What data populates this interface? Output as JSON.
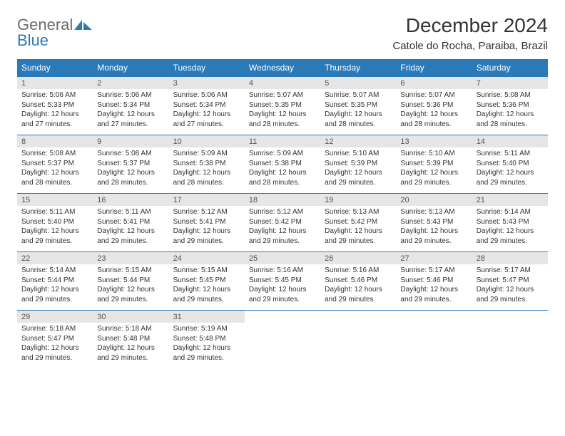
{
  "brand": {
    "word1": "General",
    "word2": "Blue"
  },
  "title": "December 2024",
  "location": "Catole do Rocha, Paraiba, Brazil",
  "colors": {
    "header_bg": "#2a7ab9",
    "header_text": "#ffffff",
    "daynum_bg": "#e6e6e6",
    "rule": "#2a7ab9",
    "text": "#333333",
    "logo_gray": "#6b6b6b",
    "logo_blue": "#2a7ab9",
    "page_bg": "#ffffff"
  },
  "days_of_week": [
    "Sunday",
    "Monday",
    "Tuesday",
    "Wednesday",
    "Thursday",
    "Friday",
    "Saturday"
  ],
  "weeks": [
    [
      {
        "n": "1",
        "sr": "5:06 AM",
        "ss": "5:33 PM",
        "dl": "12 hours and 27 minutes."
      },
      {
        "n": "2",
        "sr": "5:06 AM",
        "ss": "5:34 PM",
        "dl": "12 hours and 27 minutes."
      },
      {
        "n": "3",
        "sr": "5:06 AM",
        "ss": "5:34 PM",
        "dl": "12 hours and 27 minutes."
      },
      {
        "n": "4",
        "sr": "5:07 AM",
        "ss": "5:35 PM",
        "dl": "12 hours and 28 minutes."
      },
      {
        "n": "5",
        "sr": "5:07 AM",
        "ss": "5:35 PM",
        "dl": "12 hours and 28 minutes."
      },
      {
        "n": "6",
        "sr": "5:07 AM",
        "ss": "5:36 PM",
        "dl": "12 hours and 28 minutes."
      },
      {
        "n": "7",
        "sr": "5:08 AM",
        "ss": "5:36 PM",
        "dl": "12 hours and 28 minutes."
      }
    ],
    [
      {
        "n": "8",
        "sr": "5:08 AM",
        "ss": "5:37 PM",
        "dl": "12 hours and 28 minutes."
      },
      {
        "n": "9",
        "sr": "5:08 AM",
        "ss": "5:37 PM",
        "dl": "12 hours and 28 minutes."
      },
      {
        "n": "10",
        "sr": "5:09 AM",
        "ss": "5:38 PM",
        "dl": "12 hours and 28 minutes."
      },
      {
        "n": "11",
        "sr": "5:09 AM",
        "ss": "5:38 PM",
        "dl": "12 hours and 28 minutes."
      },
      {
        "n": "12",
        "sr": "5:10 AM",
        "ss": "5:39 PM",
        "dl": "12 hours and 29 minutes."
      },
      {
        "n": "13",
        "sr": "5:10 AM",
        "ss": "5:39 PM",
        "dl": "12 hours and 29 minutes."
      },
      {
        "n": "14",
        "sr": "5:11 AM",
        "ss": "5:40 PM",
        "dl": "12 hours and 29 minutes."
      }
    ],
    [
      {
        "n": "15",
        "sr": "5:11 AM",
        "ss": "5:40 PM",
        "dl": "12 hours and 29 minutes."
      },
      {
        "n": "16",
        "sr": "5:11 AM",
        "ss": "5:41 PM",
        "dl": "12 hours and 29 minutes."
      },
      {
        "n": "17",
        "sr": "5:12 AM",
        "ss": "5:41 PM",
        "dl": "12 hours and 29 minutes."
      },
      {
        "n": "18",
        "sr": "5:12 AM",
        "ss": "5:42 PM",
        "dl": "12 hours and 29 minutes."
      },
      {
        "n": "19",
        "sr": "5:13 AM",
        "ss": "5:42 PM",
        "dl": "12 hours and 29 minutes."
      },
      {
        "n": "20",
        "sr": "5:13 AM",
        "ss": "5:43 PM",
        "dl": "12 hours and 29 minutes."
      },
      {
        "n": "21",
        "sr": "5:14 AM",
        "ss": "5:43 PM",
        "dl": "12 hours and 29 minutes."
      }
    ],
    [
      {
        "n": "22",
        "sr": "5:14 AM",
        "ss": "5:44 PM",
        "dl": "12 hours and 29 minutes."
      },
      {
        "n": "23",
        "sr": "5:15 AM",
        "ss": "5:44 PM",
        "dl": "12 hours and 29 minutes."
      },
      {
        "n": "24",
        "sr": "5:15 AM",
        "ss": "5:45 PM",
        "dl": "12 hours and 29 minutes."
      },
      {
        "n": "25",
        "sr": "5:16 AM",
        "ss": "5:45 PM",
        "dl": "12 hours and 29 minutes."
      },
      {
        "n": "26",
        "sr": "5:16 AM",
        "ss": "5:46 PM",
        "dl": "12 hours and 29 minutes."
      },
      {
        "n": "27",
        "sr": "5:17 AM",
        "ss": "5:46 PM",
        "dl": "12 hours and 29 minutes."
      },
      {
        "n": "28",
        "sr": "5:17 AM",
        "ss": "5:47 PM",
        "dl": "12 hours and 29 minutes."
      }
    ],
    [
      {
        "n": "29",
        "sr": "5:18 AM",
        "ss": "5:47 PM",
        "dl": "12 hours and 29 minutes."
      },
      {
        "n": "30",
        "sr": "5:18 AM",
        "ss": "5:48 PM",
        "dl": "12 hours and 29 minutes."
      },
      {
        "n": "31",
        "sr": "5:19 AM",
        "ss": "5:48 PM",
        "dl": "12 hours and 29 minutes."
      },
      null,
      null,
      null,
      null
    ]
  ],
  "labels": {
    "sunrise": "Sunrise: ",
    "sunset": "Sunset: ",
    "daylight": "Daylight: "
  }
}
